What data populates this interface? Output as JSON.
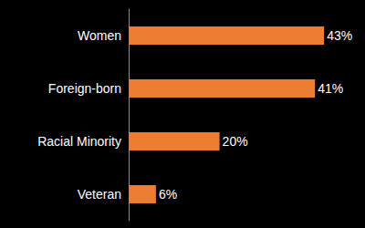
{
  "chart_data": {
    "type": "bar",
    "orientation": "horizontal",
    "categories": [
      "Women",
      "Foreign-born",
      "Racial Minority",
      "Veteran"
    ],
    "values": [
      43,
      41,
      20,
      6
    ],
    "value_labels": [
      "43%",
      "41%",
      "20%",
      "6%"
    ],
    "color": "#ed7d31",
    "xlim": [
      0,
      50
    ],
    "grid": false,
    "data_labels": true,
    "tick_labels": "y"
  }
}
